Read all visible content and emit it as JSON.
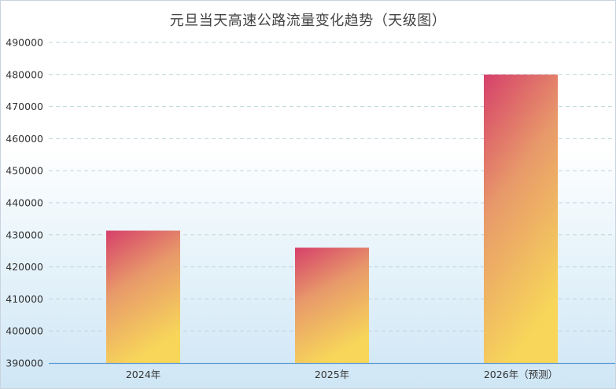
{
  "chart_data": {
    "type": "bar",
    "title": "元旦当天高速公路流量变化趋势（天级图）",
    "categories": [
      "2024年",
      "2025年",
      "2026年（预测）"
    ],
    "values": [
      431300,
      426000,
      480000
    ],
    "ylim": [
      390000,
      490000
    ],
    "yticks": [
      390000,
      400000,
      410000,
      420000,
      430000,
      440000,
      450000,
      460000,
      470000,
      480000,
      490000
    ],
    "xlabel": "",
    "ylabel": "",
    "grid": true,
    "grid_style": "dashed",
    "colors": {
      "bar_top": "#d6406a",
      "bar_mid": "#e89a6a",
      "bar_bottom": "#f7d65a",
      "grid": "#bcd6dc",
      "axis": "#5b9bd5"
    }
  }
}
